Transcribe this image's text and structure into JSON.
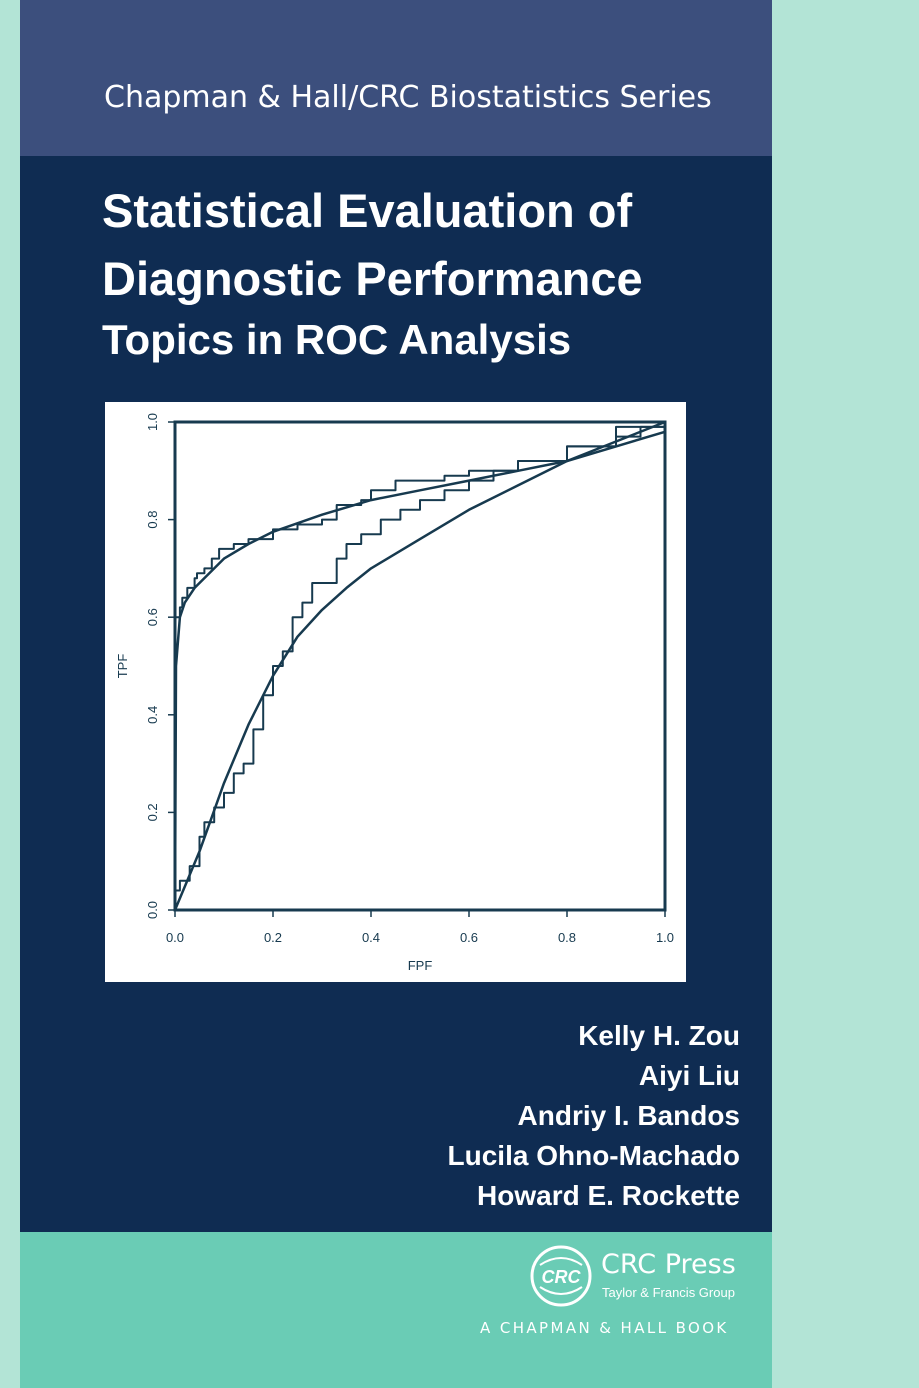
{
  "series_title": "Chapman & Hall/CRC Biostatistics Series",
  "title_line1": "Statistical Evaluation of",
  "title_line2": "Diagnostic Performance",
  "subtitle": "Topics in ROC Analysis",
  "chart_data": {
    "type": "line",
    "xlabel": "FPF",
    "ylabel": "TPF",
    "xlim": [
      0,
      1
    ],
    "ylim": [
      0,
      1
    ],
    "x_ticks": [
      "0.0",
      "0.2",
      "0.4",
      "0.6",
      "0.8",
      "1.0"
    ],
    "y_ticks": [
      "0.0",
      "0.2",
      "0.4",
      "0.6",
      "0.8",
      "1.0"
    ],
    "grid": false,
    "legend": "none",
    "line_color": "#173a4f",
    "series": [
      {
        "style": "step",
        "x": [
          0,
          0,
          0.01,
          0.01,
          0.015,
          0.015,
          0.025,
          0.025,
          0.04,
          0.04,
          0.045,
          0.045,
          0.06,
          0.06,
          0.075,
          0.075,
          0.09,
          0.09,
          0.12,
          0.12,
          0.15,
          0.15,
          0.2,
          0.2,
          0.25,
          0.25,
          0.3,
          0.3,
          0.33,
          0.33,
          0.38,
          0.38,
          0.4,
          0.4,
          0.45,
          0.45,
          0.55,
          0.55,
          0.6,
          0.6,
          0.7,
          0.7,
          0.8,
          0.8,
          0.9,
          0.9,
          0.95,
          0.95,
          1.0
        ],
        "y": [
          0,
          0.6,
          0.6,
          0.62,
          0.62,
          0.64,
          0.64,
          0.66,
          0.66,
          0.68,
          0.68,
          0.69,
          0.69,
          0.7,
          0.7,
          0.72,
          0.72,
          0.74,
          0.74,
          0.75,
          0.75,
          0.76,
          0.76,
          0.78,
          0.78,
          0.79,
          0.79,
          0.8,
          0.8,
          0.83,
          0.83,
          0.84,
          0.84,
          0.86,
          0.86,
          0.88,
          0.88,
          0.89,
          0.89,
          0.9,
          0.9,
          0.92,
          0.92,
          0.95,
          0.95,
          0.97,
          0.97,
          0.99,
          0.99
        ]
      },
      {
        "style": "smooth",
        "x": [
          0,
          0.002,
          0.01,
          0.02,
          0.04,
          0.07,
          0.1,
          0.15,
          0.2,
          0.3,
          0.4,
          0.5,
          0.6,
          0.7,
          0.8,
          0.9,
          1.0
        ],
        "y": [
          0,
          0.5,
          0.6,
          0.63,
          0.66,
          0.69,
          0.72,
          0.75,
          0.775,
          0.81,
          0.84,
          0.86,
          0.88,
          0.9,
          0.92,
          0.95,
          0.98
        ]
      },
      {
        "style": "step",
        "x": [
          0,
          0,
          0.01,
          0.01,
          0.03,
          0.03,
          0.05,
          0.05,
          0.06,
          0.06,
          0.08,
          0.08,
          0.1,
          0.1,
          0.12,
          0.12,
          0.14,
          0.14,
          0.16,
          0.16,
          0.18,
          0.18,
          0.2,
          0.2,
          0.22,
          0.22,
          0.24,
          0.24,
          0.26,
          0.26,
          0.28,
          0.28,
          0.33,
          0.33,
          0.35,
          0.35,
          0.38,
          0.38,
          0.42,
          0.42,
          0.46,
          0.46,
          0.5,
          0.5,
          0.55,
          0.55,
          0.6,
          0.6,
          0.65,
          0.65,
          0.7,
          0.7,
          0.8,
          0.8,
          0.9,
          0.9,
          1.0
        ],
        "y": [
          0,
          0.04,
          0.04,
          0.06,
          0.06,
          0.09,
          0.09,
          0.15,
          0.15,
          0.18,
          0.18,
          0.21,
          0.21,
          0.24,
          0.24,
          0.28,
          0.28,
          0.3,
          0.3,
          0.37,
          0.37,
          0.44,
          0.44,
          0.5,
          0.5,
          0.53,
          0.53,
          0.6,
          0.6,
          0.63,
          0.63,
          0.67,
          0.67,
          0.72,
          0.72,
          0.75,
          0.75,
          0.77,
          0.77,
          0.8,
          0.8,
          0.82,
          0.82,
          0.84,
          0.84,
          0.86,
          0.86,
          0.88,
          0.88,
          0.9,
          0.9,
          0.92,
          0.92,
          0.95,
          0.95,
          0.99,
          0.99
        ]
      },
      {
        "style": "smooth",
        "x": [
          0,
          0.05,
          0.1,
          0.15,
          0.2,
          0.25,
          0.3,
          0.35,
          0.4,
          0.5,
          0.6,
          0.7,
          0.8,
          0.9,
          1.0
        ],
        "y": [
          0,
          0.12,
          0.26,
          0.38,
          0.48,
          0.56,
          0.615,
          0.66,
          0.7,
          0.76,
          0.82,
          0.87,
          0.92,
          0.96,
          1.0
        ]
      }
    ]
  },
  "authors": [
    "Kelly H. Zou",
    "Aiyi Liu",
    "Andriy I. Bandos",
    "Lucila Ohno-Machado",
    "Howard E. Rockette"
  ],
  "publisher": {
    "logo_text": "CRC",
    "name": "CRC Press",
    "group": "Taylor & Francis Group",
    "imprint": "A CHAPMAN & HALL BOOK"
  },
  "colors": {
    "cover_navy": "#0f2c52",
    "series_band": "#3c4f7d",
    "publisher_band": "#6accb5",
    "page_mint": "#b3e4d6"
  }
}
